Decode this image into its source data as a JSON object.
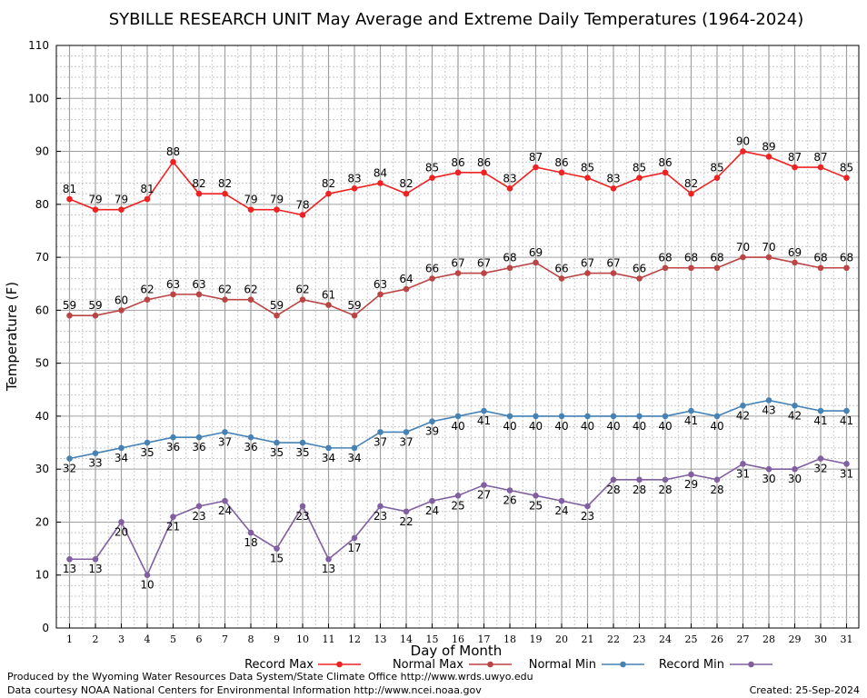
{
  "chart_data": {
    "type": "line",
    "title": "SYBILLE RESEARCH UNIT May Average and Extreme Daily Temperatures (1964-2024)",
    "xlabel": "Day of Month",
    "ylabel": "Temperature (F)",
    "ylim": [
      0,
      110
    ],
    "yticks": [
      0,
      10,
      20,
      30,
      40,
      50,
      60,
      70,
      80,
      90,
      100,
      110
    ],
    "x": [
      1,
      2,
      3,
      4,
      5,
      6,
      7,
      8,
      9,
      10,
      11,
      12,
      13,
      14,
      15,
      16,
      17,
      18,
      19,
      20,
      21,
      22,
      23,
      24,
      25,
      26,
      27,
      28,
      29,
      30,
      31
    ],
    "grid": true,
    "legend_position": "bottom",
    "series": [
      {
        "name": "Record Max",
        "color": "#ee2222",
        "label_position": "above",
        "values": [
          81,
          79,
          79,
          81,
          88,
          82,
          82,
          79,
          79,
          78,
          82,
          83,
          84,
          82,
          85,
          86,
          86,
          83,
          87,
          86,
          85,
          83,
          85,
          86,
          82,
          85,
          90,
          89,
          87,
          87,
          85
        ]
      },
      {
        "name": "Normal Max",
        "color": "#bb4444",
        "label_position": "above",
        "values": [
          59,
          59,
          60,
          62,
          63,
          63,
          62,
          62,
          59,
          62,
          61,
          59,
          63,
          64,
          66,
          67,
          67,
          68,
          69,
          66,
          67,
          67,
          66,
          68,
          68,
          68,
          70,
          70,
          69,
          68,
          68
        ]
      },
      {
        "name": "Normal Min",
        "color": "#4682b4",
        "label_position": "below",
        "values": [
          32,
          33,
          34,
          35,
          36,
          36,
          37,
          36,
          35,
          35,
          34,
          34,
          37,
          37,
          39,
          40,
          41,
          40,
          40,
          40,
          40,
          40,
          40,
          40,
          41,
          40,
          42,
          43,
          42,
          41,
          41
        ]
      },
      {
        "name": "Record Min",
        "color": "#8060a0",
        "label_position": "below",
        "values": [
          13,
          13,
          20,
          10,
          21,
          23,
          24,
          18,
          15,
          23,
          13,
          17,
          23,
          22,
          24,
          25,
          27,
          26,
          25,
          24,
          23,
          28,
          28,
          28,
          29,
          28,
          31,
          30,
          30,
          32,
          31
        ]
      }
    ]
  },
  "footer": {
    "produced_by": "Produced by the Wyoming Water Resources Data System/State Climate Office http://www.wrds.uwyo.edu",
    "data_courtesy": "Data courtesy NOAA National Centers for Environmental Information http://www.ncei.noaa.gov",
    "created": "Created:  25-Sep-2024"
  }
}
